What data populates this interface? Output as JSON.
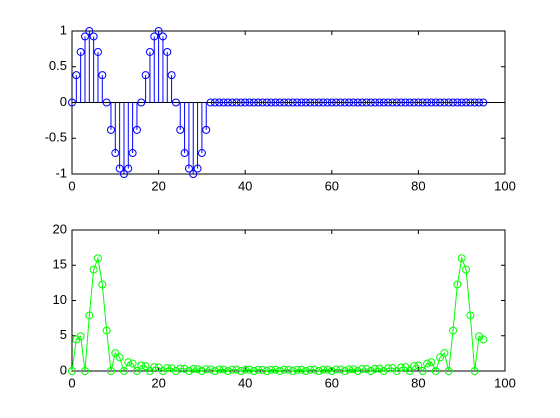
{
  "chart_data": [
    {
      "type": "stem",
      "color": "#0000ff",
      "x": [
        0,
        1,
        2,
        3,
        4,
        5,
        6,
        7,
        8,
        9,
        10,
        11,
        12,
        13,
        14,
        15,
        16,
        17,
        18,
        19,
        20,
        21,
        22,
        23,
        24,
        25,
        26,
        27,
        28,
        29,
        30,
        31,
        32,
        33,
        34,
        35,
        36,
        37,
        38,
        39,
        40,
        41,
        42,
        43,
        44,
        45,
        46,
        47,
        48,
        49,
        50,
        51,
        52,
        53,
        54,
        55,
        56,
        57,
        58,
        59,
        60,
        61,
        62,
        63,
        64,
        65,
        66,
        67,
        68,
        69,
        70,
        71,
        72,
        73,
        74,
        75,
        76,
        77,
        78,
        79,
        80,
        81,
        82,
        83,
        84,
        85,
        86,
        87,
        88,
        89,
        90,
        91,
        92,
        93,
        94,
        95
      ],
      "values": [
        0,
        0.3827,
        0.7071,
        0.9239,
        1,
        0.9239,
        0.7071,
        0.3827,
        0,
        -0.3827,
        -0.7071,
        -0.9239,
        -1,
        -0.9239,
        -0.7071,
        -0.3827,
        0,
        0.3827,
        0.7071,
        0.9239,
        1,
        0.9239,
        0.7071,
        0.3827,
        0,
        -0.3827,
        -0.7071,
        -0.9239,
        -1,
        -0.9239,
        -0.7071,
        -0.3827,
        0,
        0,
        0,
        0,
        0,
        0,
        0,
        0,
        0,
        0,
        0,
        0,
        0,
        0,
        0,
        0,
        0,
        0,
        0,
        0,
        0,
        0,
        0,
        0,
        0,
        0,
        0,
        0,
        0,
        0,
        0,
        0,
        0,
        0,
        0,
        0,
        0,
        0,
        0,
        0,
        0,
        0,
        0,
        0,
        0,
        0,
        0,
        0,
        0,
        0,
        0,
        0,
        0,
        0,
        0,
        0,
        0,
        0,
        0,
        0,
        0,
        0,
        0,
        0
      ],
      "xlim": [
        0,
        100
      ],
      "xticks": [
        0,
        20,
        40,
        60,
        80,
        100
      ],
      "ylim": [
        -1,
        1
      ],
      "yticks": [
        -1,
        -0.5,
        0,
        0.5,
        1
      ]
    },
    {
      "type": "line",
      "color": "#00ff00",
      "x": [
        0,
        1,
        2,
        3,
        4,
        5,
        6,
        7,
        8,
        9,
        10,
        11,
        12,
        13,
        14,
        15,
        16,
        17,
        18,
        19,
        20,
        21,
        22,
        23,
        24,
        25,
        26,
        27,
        28,
        29,
        30,
        31,
        32,
        33,
        34,
        35,
        36,
        37,
        38,
        39,
        40,
        41,
        42,
        43,
        44,
        45,
        46,
        47,
        48,
        49,
        50,
        51,
        52,
        53,
        54,
        55,
        56,
        57,
        58,
        59,
        60,
        61,
        62,
        63,
        64,
        65,
        66,
        67,
        68,
        69,
        70,
        71,
        72,
        73,
        74,
        75,
        76,
        77,
        78,
        79,
        80,
        81,
        82,
        83,
        84,
        85,
        86,
        87,
        88,
        89,
        90,
        91,
        92,
        93,
        94,
        95
      ],
      "values": [
        0,
        4.48,
        4.91,
        0,
        7.88,
        14.38,
        16,
        12.27,
        5.73,
        0,
        2.54,
        1.93,
        0,
        1.25,
        1.05,
        0,
        0.78,
        0.69,
        0,
        0.55,
        0.5,
        0,
        0.42,
        0.39,
        0,
        0.34,
        0.31,
        0,
        0.28,
        0.27,
        0,
        0.24,
        0.23,
        0,
        0.22,
        0.21,
        0,
        0.2,
        0.19,
        0,
        0.19,
        0.18,
        0,
        0.18,
        0.17,
        0,
        0.17,
        0.17,
        0,
        0.17,
        0.17,
        0,
        0.17,
        0.18,
        0,
        0.18,
        0.19,
        0,
        0.19,
        0.2,
        0,
        0.21,
        0.22,
        0,
        0.23,
        0.24,
        0,
        0.27,
        0.28,
        0,
        0.31,
        0.34,
        0,
        0.39,
        0.42,
        0,
        0.5,
        0.55,
        0,
        0.69,
        0.78,
        0,
        1.05,
        1.25,
        0,
        1.93,
        2.54,
        0,
        5.73,
        12.27,
        16,
        14.38,
        7.88,
        0,
        4.91,
        4.48
      ],
      "xlim": [
        0,
        100
      ],
      "xticks": [
        0,
        20,
        40,
        60,
        80,
        100
      ],
      "ylim": [
        0,
        20
      ],
      "yticks": [
        0,
        5,
        10,
        15,
        20
      ]
    }
  ]
}
